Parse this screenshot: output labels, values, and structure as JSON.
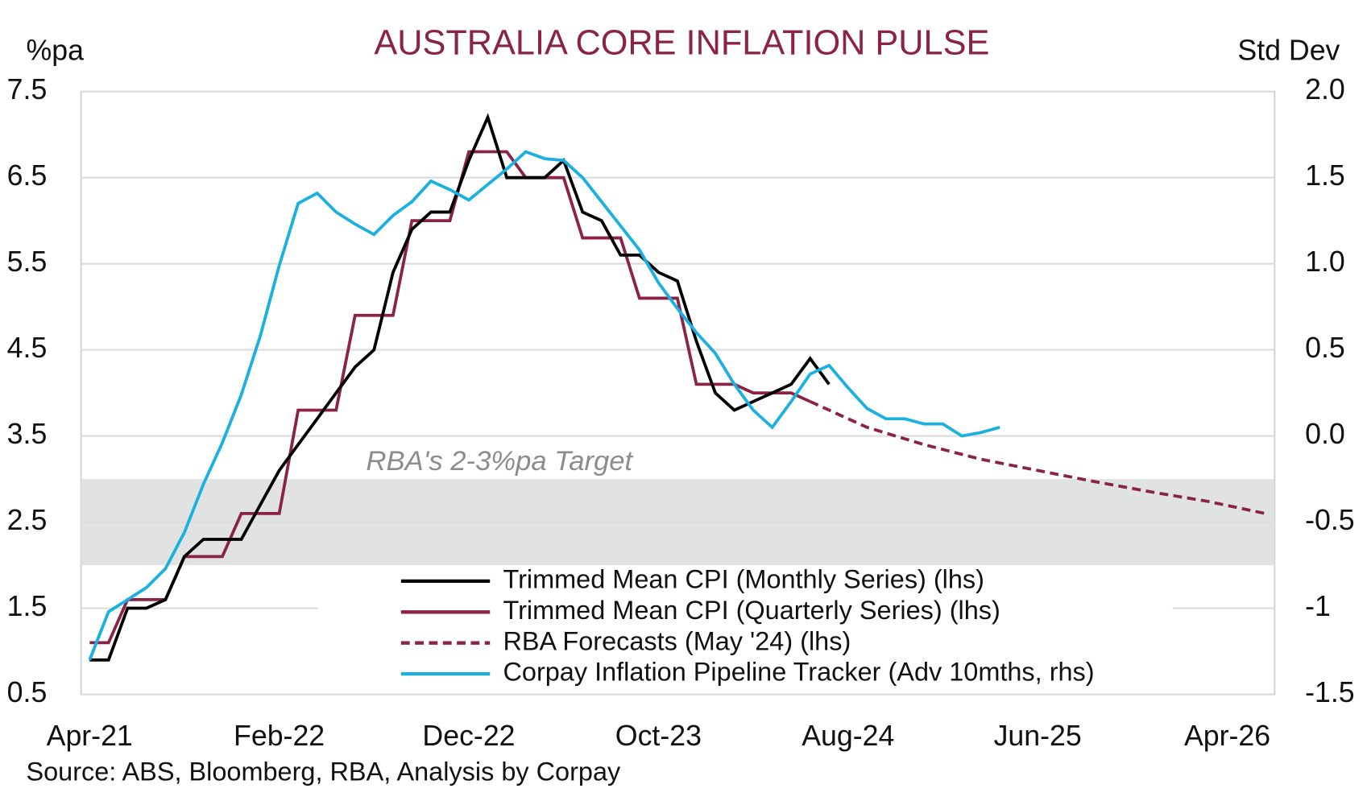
{
  "chart_data": {
    "type": "line",
    "title": "AUSTRALIA CORE INFLATION PULSE",
    "y_label": "%pa",
    "y2_label": "Std Dev",
    "source": "Source: ABS, Bloomberg, RBA, Analysis by Corpay",
    "xlim": [
      "2021-03",
      "2026-07"
    ],
    "xticks": [
      {
        "value": "2021-04",
        "label": "Apr-21"
      },
      {
        "value": "2022-02",
        "label": "Feb-22"
      },
      {
        "value": "2022-12",
        "label": "Dec-22"
      },
      {
        "value": "2023-10",
        "label": "Oct-23"
      },
      {
        "value": "2024-08",
        "label": "Aug-24"
      },
      {
        "value": "2025-06",
        "label": "Jun-25"
      },
      {
        "value": "2026-04",
        "label": "Apr-26"
      }
    ],
    "ylim": [
      0.5,
      7.5
    ],
    "yticks": [
      0.5,
      1.5,
      2.5,
      3.5,
      4.5,
      5.5,
      6.5,
      7.5
    ],
    "y2lim": [
      -1.5,
      2.0
    ],
    "y2ticks": [
      -1.5,
      -1.0,
      -0.5,
      {
        "value": 0,
        "label": "0.0"
      },
      0.5,
      {
        "value": 1,
        "label": "1.0"
      },
      1.5,
      {
        "value": 2,
        "label": "2.0"
      }
    ],
    "grid": true,
    "target_band": {
      "range": [
        2,
        3
      ],
      "label": "RBA's 2-3%pa Target",
      "color": "#dcdedd"
    },
    "series": [
      {
        "name": "Trimmed Mean CPI (Monthly Series) (lhs)",
        "color": "#000000",
        "dashed": false,
        "axis": "y",
        "x": [
          "2021-04",
          "2021-05",
          "2021-06",
          "2021-07",
          "2021-08",
          "2021-09",
          "2021-10",
          "2021-11",
          "2021-12",
          "2022-01",
          "2022-02",
          "2022-03",
          "2022-04",
          "2022-05",
          "2022-06",
          "2022-07",
          "2022-08",
          "2022-09",
          "2022-10",
          "2022-11",
          "2022-12",
          "2023-01",
          "2023-02",
          "2023-03",
          "2023-04",
          "2023-05",
          "2023-06",
          "2023-07",
          "2023-08",
          "2023-09",
          "2023-10",
          "2023-11",
          "2023-12",
          "2024-01",
          "2024-02",
          "2024-03",
          "2024-04",
          "2024-05",
          "2024-06",
          "2024-07"
        ],
        "values": [
          0.9,
          0.9,
          1.5,
          1.5,
          1.6,
          2.1,
          2.3,
          2.3,
          2.3,
          2.7,
          3.1,
          3.4,
          3.7,
          4.0,
          4.3,
          4.5,
          5.4,
          5.9,
          6.1,
          6.1,
          6.7,
          7.2,
          6.5,
          6.5,
          6.5,
          6.7,
          6.1,
          6.0,
          5.6,
          5.6,
          5.4,
          5.3,
          4.6,
          4.0,
          3.8,
          3.9,
          4.0,
          4.1,
          4.4,
          4.1
        ]
      },
      {
        "name": "Trimmed Mean CPI (Quarterly Series) (lhs)",
        "color": "#8b2346",
        "dashed": false,
        "axis": "y",
        "x": [
          "2021-04",
          "2021-05",
          "2021-06",
          "2021-07",
          "2021-08",
          "2021-09",
          "2021-10",
          "2021-11",
          "2021-12",
          "2022-01",
          "2022-02",
          "2022-03",
          "2022-04",
          "2022-05",
          "2022-06",
          "2022-07",
          "2022-08",
          "2022-09",
          "2022-10",
          "2022-11",
          "2022-12",
          "2023-01",
          "2023-02",
          "2023-03",
          "2023-04",
          "2023-05",
          "2023-06",
          "2023-07",
          "2023-08",
          "2023-09",
          "2023-10",
          "2023-11",
          "2023-12",
          "2024-01",
          "2024-02",
          "2024-03",
          "2024-04",
          "2024-05",
          "2024-06"
        ],
        "values": [
          1.1,
          1.1,
          1.6,
          1.6,
          1.6,
          2.1,
          2.1,
          2.1,
          2.6,
          2.6,
          2.6,
          3.8,
          3.8,
          3.8,
          4.9,
          4.9,
          4.9,
          6.0,
          6.0,
          6.0,
          6.8,
          6.8,
          6.8,
          6.5,
          6.5,
          6.5,
          5.8,
          5.8,
          5.8,
          5.1,
          5.1,
          5.1,
          4.1,
          4.1,
          4.1,
          4.0,
          4.0,
          4.0,
          3.9
        ]
      },
      {
        "name": "RBA Forecasts (May '24) (lhs)",
        "color": "#8b2346",
        "dashed": true,
        "axis": "y",
        "x": [
          "2024-06",
          "2024-09",
          "2024-12",
          "2025-03",
          "2025-06",
          "2025-09",
          "2025-12",
          "2026-03",
          "2026-06"
        ],
        "values": [
          3.9,
          3.6,
          3.4,
          3.23,
          3.1,
          2.97,
          2.85,
          2.74,
          2.6
        ]
      },
      {
        "name": "Corpay Inflation Pipeline Tracker (Adv 10mths, rhs)",
        "color": "#1ab0e0",
        "dashed": false,
        "axis": "y2",
        "x": [
          "2021-04",
          "2021-05",
          "2021-06",
          "2021-07",
          "2021-08",
          "2021-09",
          "2021-10",
          "2021-11",
          "2021-12",
          "2022-01",
          "2022-02",
          "2022-03",
          "2022-04",
          "2022-05",
          "2022-06",
          "2022-07",
          "2022-08",
          "2022-09",
          "2022-10",
          "2022-11",
          "2022-12",
          "2023-01",
          "2023-02",
          "2023-03",
          "2023-04",
          "2023-05",
          "2023-06",
          "2023-07",
          "2023-08",
          "2023-09",
          "2023-10",
          "2023-11",
          "2023-12",
          "2024-01",
          "2024-02",
          "2024-03",
          "2024-04",
          "2024-05",
          "2024-06",
          "2024-07",
          "2024-08",
          "2024-09",
          "2024-10",
          "2024-11",
          "2024-12",
          "2025-01",
          "2025-02",
          "2025-03",
          "2025-04"
        ],
        "values": [
          -1.3,
          -1.02,
          -0.95,
          -0.88,
          -0.77,
          -0.56,
          -0.28,
          -0.04,
          0.24,
          0.58,
          0.99,
          1.35,
          1.41,
          1.3,
          1.23,
          1.17,
          1.28,
          1.36,
          1.48,
          1.43,
          1.37,
          1.46,
          1.55,
          1.65,
          1.61,
          1.6,
          1.5,
          1.36,
          1.22,
          1.08,
          0.89,
          0.74,
          0.6,
          0.48,
          0.3,
          0.15,
          0.05,
          0.2,
          0.36,
          0.41,
          0.28,
          0.16,
          0.1,
          0.1,
          0.07,
          0.07,
          0.0,
          0.02,
          0.05
        ]
      }
    ]
  }
}
